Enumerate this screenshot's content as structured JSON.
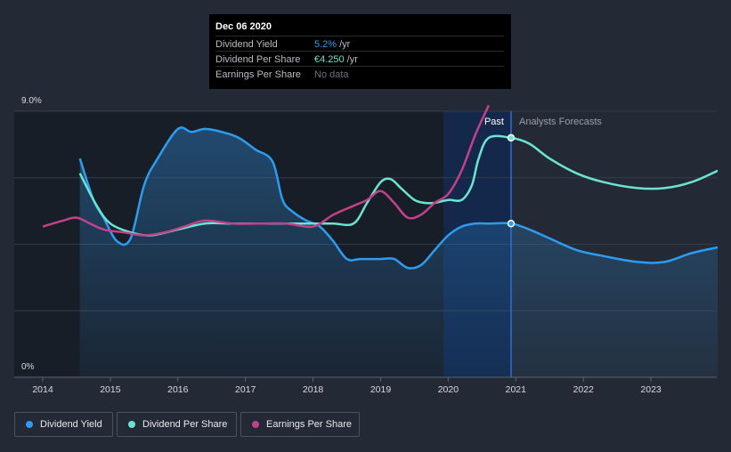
{
  "tooltip": {
    "date": "Dec 06 2020",
    "rows": [
      {
        "label": "Dividend Yield",
        "value": "5.2%",
        "unit": "/yr",
        "color": "#2d9cf0"
      },
      {
        "label": "Dividend Per Share",
        "value": "€4.250",
        "unit": "/yr",
        "color": "#6de4d2"
      },
      {
        "label": "Earnings Per Share",
        "value": "No data",
        "unit": "",
        "color": "#6b7280"
      }
    ]
  },
  "legend": [
    {
      "label": "Dividend Yield",
      "color": "#2d9cf0"
    },
    {
      "label": "Dividend Per Share",
      "color": "#6de4d2"
    },
    {
      "label": "Earnings Per Share",
      "color": "#c2418a"
    }
  ],
  "chart_data": {
    "type": "line",
    "x_ticks": [
      "2014",
      "2015",
      "2016",
      "2017",
      "2018",
      "2019",
      "2020",
      "2021",
      "2022",
      "2023"
    ],
    "y_tick_labels": [
      "9.0%",
      "0%"
    ],
    "ylim": [
      0,
      9
    ],
    "xlim": [
      2013.6,
      2024.0
    ],
    "past_label": "Past",
    "forecast_label": "Analysts Forecasts",
    "marker_x": 2020.93,
    "past_start_x": 2019.93,
    "series": [
      {
        "name": "Dividend Yield",
        "color": "#2d9cf0",
        "x": [
          2014.55,
          2014.75,
          2014.9,
          2015.1,
          2015.3,
          2015.5,
          2015.7,
          2016.0,
          2016.2,
          2016.4,
          2016.65,
          2016.9,
          2017.15,
          2017.4,
          2017.55,
          2017.7,
          2017.9,
          2018.1,
          2018.3,
          2018.5,
          2018.7,
          2019.0,
          2019.2,
          2019.4,
          2019.6,
          2019.8,
          2020.0,
          2020.2,
          2020.4,
          2020.6,
          2020.93,
          2021.2,
          2021.5,
          2021.9,
          2022.3,
          2022.8,
          2023.2,
          2023.6,
          2024.0
        ],
        "y": [
          7.4,
          6.0,
          5.4,
          4.6,
          4.7,
          6.5,
          7.4,
          8.4,
          8.3,
          8.4,
          8.3,
          8.1,
          7.7,
          7.3,
          6.0,
          5.6,
          5.3,
          5.1,
          4.6,
          4.0,
          4.0,
          4.0,
          4.0,
          3.7,
          3.8,
          4.3,
          4.8,
          5.1,
          5.2,
          5.2,
          5.2,
          5.0,
          4.7,
          4.3,
          4.1,
          3.9,
          3.9,
          4.2,
          4.4
        ]
      },
      {
        "name": "Dividend Per Share",
        "color": "#6de4d2",
        "x": [
          2014.55,
          2014.8,
          2015.0,
          2015.3,
          2015.6,
          2016.0,
          2016.4,
          2016.8,
          2017.2,
          2017.6,
          2018.0,
          2018.3,
          2018.6,
          2018.8,
          2019.0,
          2019.15,
          2019.3,
          2019.5,
          2019.65,
          2019.8,
          2020.0,
          2020.2,
          2020.35,
          2020.45,
          2020.6,
          2020.93,
          2021.2,
          2021.5,
          2021.9,
          2022.3,
          2022.8,
          2023.2,
          2023.6,
          2024.0
        ],
        "y": [
          6.9,
          5.8,
          5.2,
          4.9,
          4.8,
          5.0,
          5.2,
          5.2,
          5.2,
          5.2,
          5.2,
          5.2,
          5.2,
          5.9,
          6.6,
          6.7,
          6.4,
          6.0,
          5.9,
          5.9,
          6.0,
          6.0,
          6.5,
          7.4,
          8.1,
          8.1,
          7.9,
          7.4,
          6.9,
          6.6,
          6.4,
          6.4,
          6.6,
          7.0
        ]
      },
      {
        "name": "Earnings Per Share",
        "color": "#c2418a",
        "x": [
          2014.0,
          2014.3,
          2014.5,
          2014.7,
          2014.9,
          2015.2,
          2015.5,
          2015.8,
          2016.1,
          2016.4,
          2016.8,
          2017.2,
          2017.6,
          2018.0,
          2018.3,
          2018.6,
          2018.8,
          2019.0,
          2019.2,
          2019.4,
          2019.6,
          2019.8,
          2020.0,
          2020.2,
          2020.4,
          2020.6
        ],
        "y": [
          5.1,
          5.3,
          5.4,
          5.2,
          5.0,
          4.9,
          4.8,
          4.9,
          5.1,
          5.3,
          5.2,
          5.2,
          5.2,
          5.1,
          5.5,
          5.8,
          6.0,
          6.3,
          5.9,
          5.4,
          5.5,
          5.9,
          6.2,
          7.0,
          8.2,
          9.2
        ]
      }
    ]
  }
}
